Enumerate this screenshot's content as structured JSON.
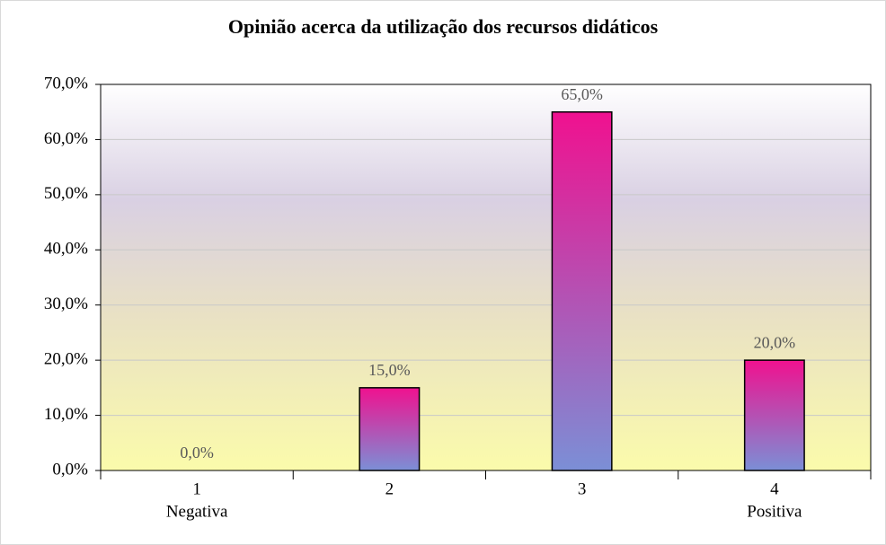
{
  "chart_data": {
    "type": "bar",
    "title": "Opinião acerca da utilização dos recursos didáticos",
    "categories": [
      "1",
      "2",
      "3",
      "4"
    ],
    "category_sublabels": [
      "Negativa",
      null,
      null,
      "Positiva"
    ],
    "values": [
      0,
      15,
      65,
      20
    ],
    "value_labels": [
      "0,0%",
      "15,0%",
      "65,0%",
      "20,0%"
    ],
    "ylim": [
      0,
      70
    ],
    "yticks": [
      {
        "value": 0,
        "label": "0,0%"
      },
      {
        "value": 10,
        "label": "10,0%"
      },
      {
        "value": 20,
        "label": "20,0%"
      },
      {
        "value": 30,
        "label": "30,0%"
      },
      {
        "value": 40,
        "label": "40,0%"
      },
      {
        "value": 50,
        "label": "50,0%"
      },
      {
        "value": 60,
        "label": "60,0%"
      },
      {
        "value": 70,
        "label": "70,0%"
      }
    ],
    "grid": true,
    "color": [
      "#f0118f",
      "#7b8fd6"
    ]
  }
}
